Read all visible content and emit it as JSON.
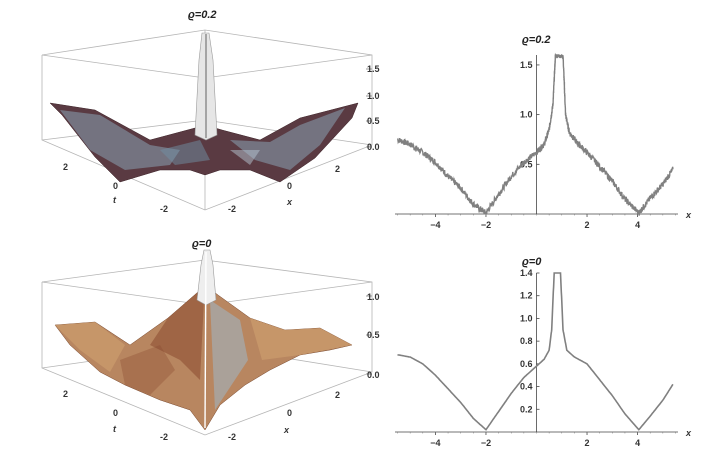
{
  "chart_data": [
    {
      "type": "surface",
      "title": "ϱ=0.2",
      "xlabel": "x",
      "ylabel": "t",
      "z_ticks": [
        "0.0",
        "0.5",
        "1.0",
        "1.5"
      ],
      "x_ticks": [
        "-2",
        "0",
        "2"
      ],
      "t_ticks": [
        "-2",
        "0",
        "2"
      ],
      "texture": "noisy",
      "colors": {
        "light": "#9db6c6",
        "dark": "#4a2b30",
        "peak": "#e8e8e8"
      }
    },
    {
      "type": "line",
      "title": "ϱ=0.2",
      "xlabel": "x",
      "xlim": [
        -5.6,
        5.6
      ],
      "ylim": [
        0,
        1.6
      ],
      "x_ticks": [
        -4,
        -2,
        2,
        4
      ],
      "y_ticks": [
        0.5,
        1.0,
        1.5
      ],
      "y_tick_labels": [
        "0.5",
        "1.0",
        "1.5"
      ],
      "noisy": true,
      "color": "#808080",
      "points": [
        [
          -5.5,
          0.75
        ],
        [
          -5.0,
          0.7
        ],
        [
          -4.5,
          0.62
        ],
        [
          -4.0,
          0.52
        ],
        [
          -3.5,
          0.38
        ],
        [
          -3.0,
          0.26
        ],
        [
          -2.5,
          0.1
        ],
        [
          -2.0,
          0.01
        ],
        [
          -1.5,
          0.2
        ],
        [
          -1.0,
          0.38
        ],
        [
          -0.5,
          0.52
        ],
        [
          0.0,
          0.62
        ],
        [
          0.3,
          0.7
        ],
        [
          0.5,
          0.85
        ],
        [
          0.65,
          1.1
        ],
        [
          0.75,
          1.6
        ],
        [
          1.05,
          1.6
        ],
        [
          1.15,
          1.0
        ],
        [
          1.3,
          0.82
        ],
        [
          1.6,
          0.72
        ],
        [
          2.0,
          0.62
        ],
        [
          2.5,
          0.48
        ],
        [
          3.0,
          0.33
        ],
        [
          3.5,
          0.15
        ],
        [
          4.05,
          0.01
        ],
        [
          4.5,
          0.16
        ],
        [
          5.0,
          0.3
        ],
        [
          5.4,
          0.45
        ]
      ]
    },
    {
      "type": "surface",
      "title": "ϱ=0",
      "xlabel": "x",
      "ylabel": "t",
      "z_ticks": [
        "0.0",
        "0.5",
        "1.0"
      ],
      "x_ticks": [
        "-2",
        "0",
        "2"
      ],
      "t_ticks": [
        "-2",
        "0",
        "2"
      ],
      "texture": "smooth",
      "colors": {
        "light": "#d9b48a",
        "dark": "#8a4a30",
        "accent": "#9fb8c8",
        "peak": "#eeeeee"
      }
    },
    {
      "type": "line",
      "title": "ϱ=0",
      "xlabel": "x",
      "xlim": [
        -5.6,
        5.6
      ],
      "ylim": [
        0,
        1.4
      ],
      "x_ticks": [
        -4,
        -2,
        2,
        4
      ],
      "y_ticks": [
        0.2,
        0.4,
        0.6,
        0.8,
        1.0,
        1.2,
        1.4
      ],
      "y_tick_labels": [
        "0.2",
        "0.4",
        "0.6",
        "0.8",
        "1.0",
        "1.2",
        "1.4"
      ],
      "noisy": false,
      "color": "#808080",
      "points": [
        [
          -5.5,
          0.68
        ],
        [
          -5.0,
          0.66
        ],
        [
          -4.5,
          0.6
        ],
        [
          -4.0,
          0.5
        ],
        [
          -3.5,
          0.38
        ],
        [
          -3.0,
          0.26
        ],
        [
          -2.5,
          0.12
        ],
        [
          -2.0,
          0.02
        ],
        [
          -1.5,
          0.18
        ],
        [
          -1.0,
          0.34
        ],
        [
          -0.5,
          0.48
        ],
        [
          0.0,
          0.58
        ],
        [
          0.3,
          0.64
        ],
        [
          0.5,
          0.72
        ],
        [
          0.6,
          0.9
        ],
        [
          0.7,
          1.4
        ],
        [
          0.95,
          1.4
        ],
        [
          1.05,
          0.9
        ],
        [
          1.2,
          0.72
        ],
        [
          1.5,
          0.66
        ],
        [
          2.0,
          0.6
        ],
        [
          2.5,
          0.46
        ],
        [
          3.0,
          0.32
        ],
        [
          3.5,
          0.16
        ],
        [
          4.05,
          0.02
        ],
        [
          4.5,
          0.14
        ],
        [
          5.0,
          0.28
        ],
        [
          5.4,
          0.42
        ]
      ]
    }
  ]
}
